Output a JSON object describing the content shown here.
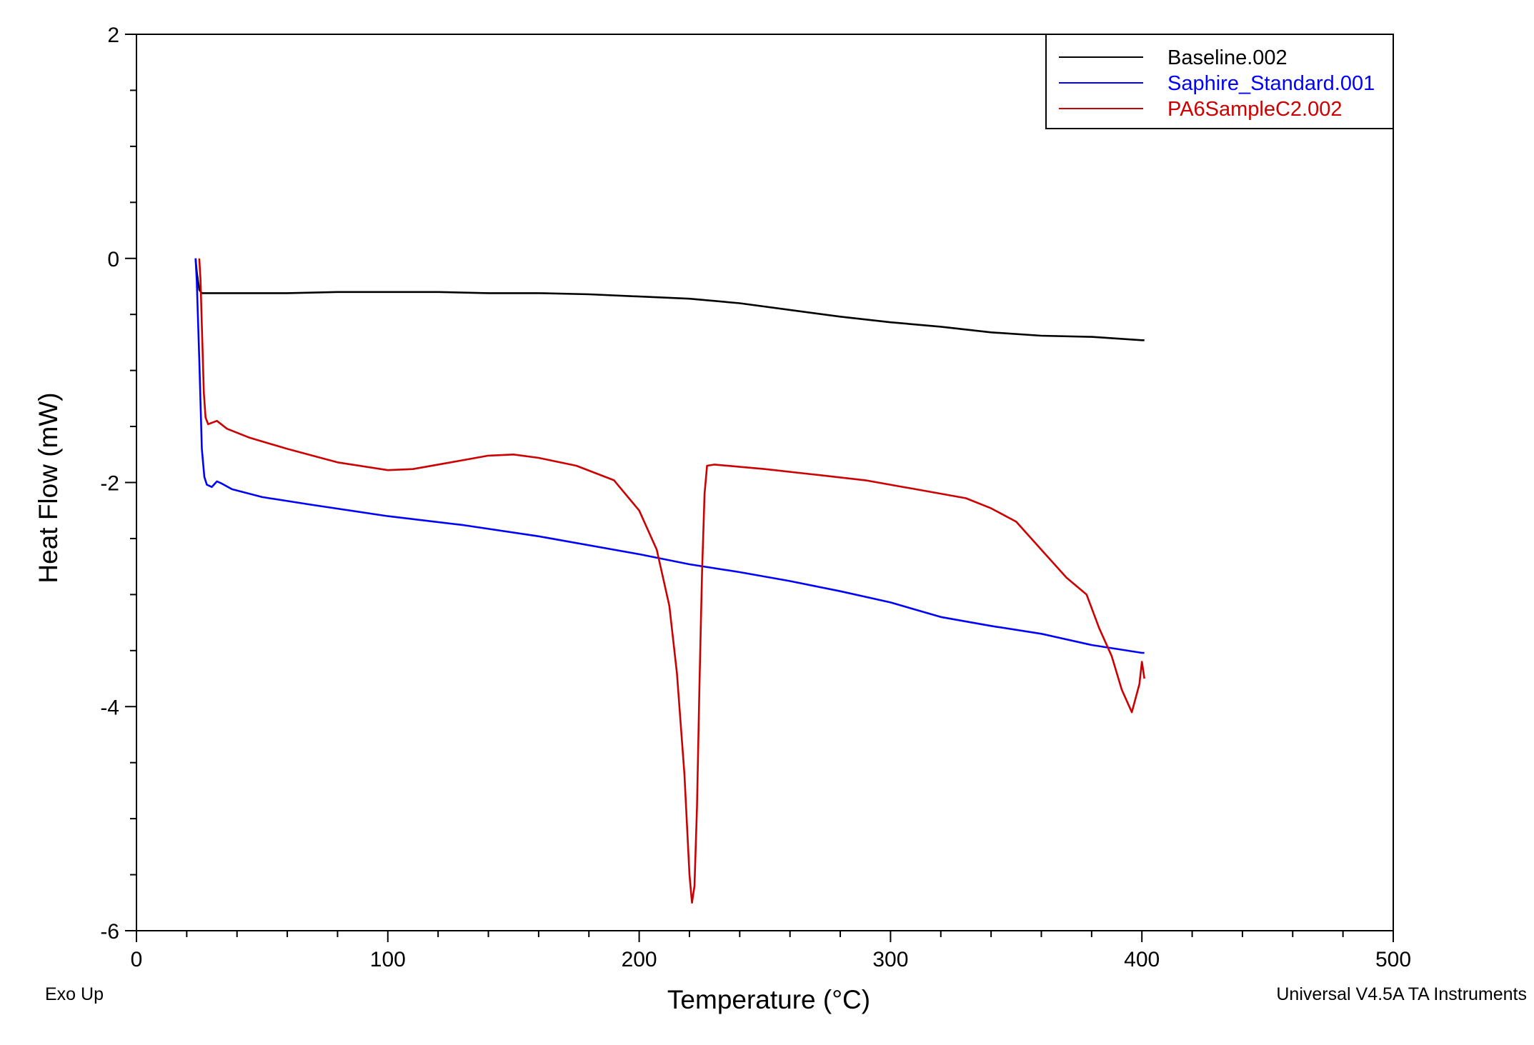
{
  "chart_data": {
    "type": "line",
    "xlabel": "Temperature (°C)",
    "ylabel": "Heat Flow (mW)",
    "xlim": [
      0,
      500
    ],
    "ylim": [
      -6,
      2
    ],
    "x_ticks": [
      0,
      100,
      200,
      300,
      400,
      500
    ],
    "y_ticks": [
      2,
      0,
      -2,
      -4,
      -6
    ],
    "x_tick_labels": [
      "0",
      "100",
      "200",
      "300",
      "400",
      "500"
    ],
    "y_tick_labels": [
      "2",
      "0",
      "-2",
      "-4",
      "-6"
    ],
    "grid": false,
    "legend_position": "top-right",
    "footer_left": "Exo Up",
    "footer_right": "Universal V4.5A TA Instruments",
    "series": [
      {
        "name": "Baseline.002",
        "color": "#000000",
        "points": [
          [
            23.5,
            0
          ],
          [
            24,
            -0.12
          ],
          [
            25,
            -0.28
          ],
          [
            26,
            -0.31
          ],
          [
            30,
            -0.31
          ],
          [
            40,
            -0.31
          ],
          [
            60,
            -0.31
          ],
          [
            80,
            -0.3
          ],
          [
            100,
            -0.3
          ],
          [
            120,
            -0.3
          ],
          [
            140,
            -0.31
          ],
          [
            160,
            -0.31
          ],
          [
            180,
            -0.32
          ],
          [
            200,
            -0.34
          ],
          [
            220,
            -0.36
          ],
          [
            240,
            -0.4
          ],
          [
            260,
            -0.46
          ],
          [
            280,
            -0.52
          ],
          [
            300,
            -0.57
          ],
          [
            320,
            -0.61
          ],
          [
            340,
            -0.66
          ],
          [
            360,
            -0.69
          ],
          [
            380,
            -0.7
          ],
          [
            400,
            -0.73
          ],
          [
            401,
            -0.73
          ]
        ]
      },
      {
        "name": "Saphire_Standard.001",
        "color": "#0000ff",
        "points": [
          [
            23.5,
            0
          ],
          [
            24,
            -0.2
          ],
          [
            25,
            -0.9
          ],
          [
            26,
            -1.7
          ],
          [
            27,
            -1.95
          ],
          [
            28,
            -2.02
          ],
          [
            30,
            -2.04
          ],
          [
            32,
            -1.99
          ],
          [
            34,
            -2.01
          ],
          [
            38,
            -2.06
          ],
          [
            50,
            -2.13
          ],
          [
            70,
            -2.2
          ],
          [
            100,
            -2.3
          ],
          [
            130,
            -2.38
          ],
          [
            160,
            -2.48
          ],
          [
            200,
            -2.64
          ],
          [
            220,
            -2.73
          ],
          [
            240,
            -2.8
          ],
          [
            260,
            -2.88
          ],
          [
            280,
            -2.97
          ],
          [
            300,
            -3.07
          ],
          [
            320,
            -3.2
          ],
          [
            340,
            -3.28
          ],
          [
            360,
            -3.35
          ],
          [
            380,
            -3.45
          ],
          [
            400,
            -3.52
          ],
          [
            401,
            -3.52
          ]
        ]
      },
      {
        "name": "PA6SampleC2.002",
        "color": "#cc0000",
        "points": [
          [
            25,
            0
          ],
          [
            25.5,
            -0.2
          ],
          [
            26,
            -0.6
          ],
          [
            26.8,
            -1.2
          ],
          [
            27.5,
            -1.42
          ],
          [
            28.5,
            -1.48
          ],
          [
            32,
            -1.45
          ],
          [
            36,
            -1.52
          ],
          [
            45,
            -1.6
          ],
          [
            60,
            -1.7
          ],
          [
            80,
            -1.82
          ],
          [
            100,
            -1.89
          ],
          [
            110,
            -1.88
          ],
          [
            125,
            -1.82
          ],
          [
            140,
            -1.76
          ],
          [
            150,
            -1.75
          ],
          [
            160,
            -1.78
          ],
          [
            175,
            -1.85
          ],
          [
            190,
            -1.98
          ],
          [
            200,
            -2.25
          ],
          [
            207,
            -2.6
          ],
          [
            212,
            -3.1
          ],
          [
            215,
            -3.7
          ],
          [
            218,
            -4.6
          ],
          [
            220,
            -5.5
          ],
          [
            221,
            -5.75
          ],
          [
            222,
            -5.6
          ],
          [
            223,
            -4.9
          ],
          [
            224,
            -3.8
          ],
          [
            225,
            -2.8
          ],
          [
            226,
            -2.1
          ],
          [
            227,
            -1.85
          ],
          [
            230,
            -1.84
          ],
          [
            250,
            -1.88
          ],
          [
            270,
            -1.93
          ],
          [
            290,
            -1.98
          ],
          [
            310,
            -2.06
          ],
          [
            330,
            -2.14
          ],
          [
            340,
            -2.23
          ],
          [
            350,
            -2.35
          ],
          [
            360,
            -2.6
          ],
          [
            370,
            -2.85
          ],
          [
            378,
            -3.0
          ],
          [
            383,
            -3.3
          ],
          [
            388,
            -3.55
          ],
          [
            392,
            -3.85
          ],
          [
            396,
            -4.05
          ],
          [
            399,
            -3.8
          ],
          [
            400,
            -3.6
          ],
          [
            401,
            -3.75
          ]
        ]
      }
    ]
  }
}
